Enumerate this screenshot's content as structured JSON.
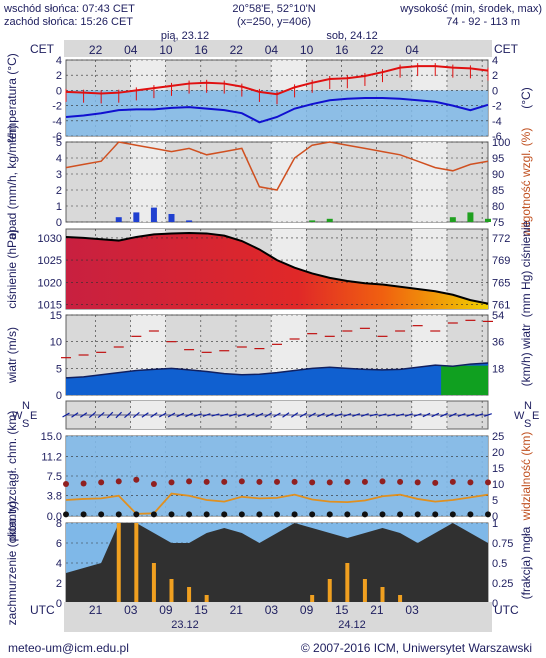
{
  "header": {
    "sunrise": "wschód słońca: 07:43 CET",
    "sunset": "zachód słońca: 15:26 CET",
    "coords": "20°58'E, 52°10'N",
    "grid": "(x=250,  y=406)",
    "elev_label": "wysokość (min, środek, max)",
    "elev_values": "74 - 92 - 113 m"
  },
  "time_axis": {
    "tz_top": "CET",
    "tz_bottom": "UTC",
    "day1_top": "pią, 23.12",
    "day2_top": "sob, 24.12",
    "day1_bottom": "23.12",
    "day2_bottom": "24.12",
    "hours_cet": [
      "22",
      "04",
      "10",
      "16",
      "22",
      "04",
      "10",
      "16",
      "22",
      "04"
    ],
    "hours_utc": [
      "21",
      "03",
      "09",
      "15",
      "21",
      "03",
      "09",
      "15",
      "21",
      "03"
    ]
  },
  "footer": {
    "email": "meteo-um@icm.edu.pl",
    "copyright": "© 2007-2016 ICM, Uniwersytet Warszawski"
  },
  "colors": {
    "panel_bg": "#d9d9d9",
    "day_band": "#ececec",
    "temp_line": "#e01010",
    "dew_line": "#1010d0",
    "precip_line": "#d05020",
    "pressure_fill": "#e03030",
    "wind_fill": "#1060d0",
    "cloud_fill": "#303030",
    "sky_blue": "#7fb8e8",
    "low_cloud_bar": "#f0a020",
    "axis_text": "#202060"
  },
  "chart_data": [
    {
      "type": "line",
      "panel": "temperature",
      "ylabel": "temperatura (°C)",
      "ylabel_right": "(°C)",
      "ylim": [
        -6,
        4
      ],
      "yticks": [
        4,
        2,
        0,
        -2,
        -4,
        -6
      ],
      "x": [
        0,
        3,
        6,
        9,
        12,
        15,
        18,
        21,
        24,
        27,
        30,
        33,
        36,
        39,
        42,
        45,
        48,
        51,
        54,
        57,
        60,
        63,
        66,
        69,
        72
      ],
      "series": [
        {
          "name": "temperatura",
          "values": [
            -0.2,
            -0.3,
            -0.4,
            -0.3,
            0.0,
            0.3,
            0.6,
            0.9,
            1.0,
            0.9,
            0.5,
            -0.2,
            -0.5,
            0.4,
            1.0,
            1.5,
            1.6,
            1.9,
            2.4,
            3.0,
            3.2,
            3.2,
            3.0,
            2.9,
            2.6
          ]
        },
        {
          "name": "punkt rosy",
          "values": [
            -3.5,
            -3.3,
            -3.0,
            -2.6,
            -2.5,
            -2.5,
            -2.3,
            -2.2,
            -2.4,
            -2.6,
            -3.0,
            -4.2,
            -3.5,
            -2.4,
            -1.8,
            -1.3,
            -1.1,
            -1.0,
            -1.0,
            -1.1,
            -1.3,
            -1.5,
            -2.0,
            -2.6,
            -1.9
          ]
        }
      ]
    },
    {
      "type": "bar",
      "panel": "precipitation",
      "ylabel": "opad (mm/h, kg/m²/h)",
      "ylabel_right": "wilgotność wzgl. (%)",
      "ylim": [
        0,
        5
      ],
      "yticks": [
        5,
        4,
        3,
        2,
        1,
        0
      ],
      "ylim_right": [
        75,
        100
      ],
      "yticks_right": [
        100,
        95,
        90,
        85,
        80,
        75
      ],
      "x": [
        0,
        3,
        6,
        9,
        12,
        15,
        18,
        21,
        24,
        27,
        30,
        33,
        36,
        39,
        42,
        45,
        48,
        51,
        54,
        57,
        60,
        63,
        66,
        69,
        72
      ],
      "series": [
        {
          "name": "opad",
          "values": [
            0,
            0,
            0,
            0.3,
            0.6,
            0.9,
            0.5,
            0.1,
            0,
            0,
            0,
            0,
            0,
            0,
            0.1,
            0.2,
            0,
            0,
            0,
            0,
            0,
            0,
            0.3,
            0.6,
            0.2
          ]
        },
        {
          "name": "wilgotność",
          "values": [
            92,
            93,
            94,
            100,
            99,
            98,
            97,
            98,
            96,
            97,
            98,
            86,
            85,
            95,
            99,
            100,
            99,
            98,
            97,
            96,
            94,
            92,
            91,
            93,
            94
          ]
        }
      ]
    },
    {
      "type": "area",
      "panel": "pressure",
      "ylabel": "ciśnienie (hPa)",
      "ylabel_right": "(mm Hg) ciśnienie",
      "ylim": [
        1014,
        1032
      ],
      "yticks": [
        1030,
        1025,
        1020,
        1015
      ],
      "yticks_right": [
        772,
        769,
        765,
        761
      ],
      "x": [
        0,
        3,
        6,
        9,
        12,
        15,
        18,
        21,
        24,
        27,
        30,
        33,
        36,
        39,
        42,
        45,
        48,
        51,
        54,
        57,
        60,
        63,
        66,
        69,
        72
      ],
      "series": [
        {
          "name": "ciśnienie",
          "values": [
            1030.2,
            1030.0,
            1029.7,
            1029.4,
            1030.2,
            1030.8,
            1031.0,
            1031.1,
            1031.0,
            1030.5,
            1029.3,
            1027.4,
            1025.0,
            1023.3,
            1022.0,
            1021.0,
            1020.3,
            1019.8,
            1019.5,
            1019.0,
            1018.5,
            1018.0,
            1017.2,
            1016.0,
            1015.2
          ]
        }
      ]
    },
    {
      "type": "area",
      "panel": "wind",
      "ylabel": "wiatr (m/s)",
      "ylabel_right": "(km/h) wiatr",
      "ylim": [
        0,
        15
      ],
      "yticks": [
        15,
        10,
        5,
        0
      ],
      "yticks_right": [
        54,
        36,
        18
      ],
      "x": [
        0,
        3,
        6,
        9,
        12,
        15,
        18,
        21,
        24,
        27,
        30,
        33,
        36,
        39,
        42,
        45,
        48,
        51,
        54,
        57,
        60,
        63,
        66,
        69,
        72
      ],
      "series": [
        {
          "name": "średnia prędkość",
          "values": [
            3.2,
            3.4,
            3.8,
            4.2,
            4.6,
            4.8,
            5.0,
            4.7,
            4.4,
            4.0,
            3.8,
            3.9,
            4.2,
            4.6,
            5.0,
            5.2,
            5.0,
            4.8,
            4.7,
            4.8,
            5.2,
            5.6,
            5.4,
            5.8,
            6.0
          ]
        },
        {
          "name": "porywy",
          "values": [
            7.0,
            7.5,
            8.0,
            9.0,
            11.0,
            12.0,
            10.0,
            8.5,
            8.0,
            8.3,
            9.0,
            8.7,
            9.5,
            10.5,
            11.5,
            11.0,
            12.0,
            12.5,
            11.0,
            12.0,
            13.0,
            12.0,
            13.5,
            14.0,
            13.8
          ]
        }
      ]
    },
    {
      "type": "scatter",
      "panel": "wind-direction",
      "ylabel": "W N S E",
      "x": [
        0,
        3,
        6,
        9,
        12,
        15,
        18,
        21,
        24,
        27,
        30,
        33,
        36,
        39,
        42,
        45,
        48,
        51,
        54,
        57,
        60,
        63,
        66,
        69,
        72
      ],
      "series": [
        {
          "name": "kierunek (°)",
          "values": [
            240,
            235,
            230,
            225,
            230,
            235,
            240,
            245,
            250,
            255,
            250,
            245,
            240,
            235,
            240,
            245,
            250,
            250,
            255,
            255,
            250,
            245,
            245,
            250,
            250
          ]
        }
      ]
    },
    {
      "type": "line",
      "panel": "visibility",
      "ylabel": "pion. rozciągł. chm. (km)",
      "ylabel_right": "widzialność (km)",
      "ylim": [
        0,
        15
      ],
      "yticks": [
        15.0,
        11.2,
        7.5,
        3.8,
        0.0
      ],
      "ylim_right": [
        0,
        25
      ],
      "yticks_right": [
        25,
        20,
        15,
        10,
        5,
        0
      ],
      "x": [
        0,
        3,
        6,
        9,
        12,
        15,
        18,
        21,
        24,
        27,
        30,
        33,
        36,
        39,
        42,
        45,
        48,
        51,
        54,
        57,
        60,
        63,
        66,
        69,
        72
      ],
      "series": [
        {
          "name": "widzialność",
          "values": [
            3.0,
            3.2,
            3.3,
            3.8,
            0.4,
            0.5,
            4.2,
            3.8,
            3.0,
            2.7,
            3.6,
            3.3,
            3.4,
            4.0,
            3.1,
            2.7,
            2.6,
            2.9,
            3.7,
            4.0,
            3.2,
            2.7,
            3.0,
            3.5,
            4.0
          ]
        },
        {
          "name": "zasięg chmur",
          "values": [
            6.0,
            6.1,
            6.3,
            6.5,
            6.8,
            6.0,
            6.3,
            6.5,
            6.4,
            6.4,
            6.5,
            6.4,
            6.4,
            6.4,
            6.3,
            6.3,
            6.4,
            6.4,
            6.5,
            6.4,
            6.3,
            6.2,
            6.4,
            6.3,
            6.3
          ]
        }
      ]
    },
    {
      "type": "bar",
      "panel": "clouds",
      "ylabel": "zachmurzenie (oktanty)",
      "ylabel_right": "(frakcja) mgła",
      "ylim": [
        0,
        8
      ],
      "yticks": [
        8,
        6,
        4,
        2,
        0
      ],
      "ylim_right": [
        0,
        1
      ],
      "yticks_right": [
        1,
        0.75,
        0.5,
        0.25,
        0
      ],
      "x": [
        0,
        3,
        6,
        9,
        12,
        15,
        18,
        21,
        24,
        27,
        30,
        33,
        36,
        39,
        42,
        45,
        48,
        51,
        54,
        57,
        60,
        63,
        66,
        69,
        72
      ],
      "series": [
        {
          "name": "zachmurzenie",
          "values": [
            3,
            3.5,
            4,
            8,
            8,
            7,
            6,
            6,
            7,
            7.5,
            7,
            6,
            7,
            8,
            7.5,
            7,
            6.5,
            7,
            7.5,
            7,
            6,
            7,
            8,
            7,
            6
          ]
        },
        {
          "name": "mgła",
          "values": [
            0,
            0,
            0,
            1.0,
            1.0,
            0.5,
            0.3,
            0.2,
            0.1,
            0,
            0,
            0,
            0,
            0,
            0.1,
            0.3,
            0.5,
            0.3,
            0.2,
            0.1,
            0,
            0,
            0,
            0,
            0
          ]
        }
      ]
    }
  ]
}
